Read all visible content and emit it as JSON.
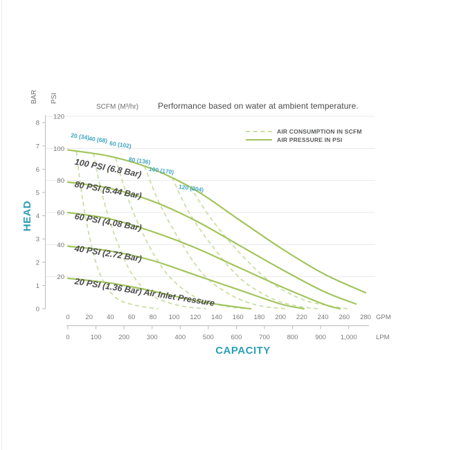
{
  "header": {
    "scfm_axis_label": "SCFM (M³/hr)",
    "title": "Performance based on water at ambient temperature."
  },
  "legend": {
    "items": [
      {
        "label": "AIR CONSUMPTION IN SCFM",
        "style": "dashed"
      },
      {
        "label": "AIR PRESSURE IN PSI",
        "style": "solid"
      }
    ]
  },
  "axes": {
    "head_label": "HEAD",
    "capacity_label": "CAPACITY",
    "bar_label": "BAR",
    "psi_label": "PSI",
    "gpm_unit": "GPM",
    "lpm_unit": "LPM",
    "bar_ticks": [
      0,
      1,
      2,
      3,
      4,
      5,
      6,
      7,
      8
    ],
    "psi_ticks": [
      20,
      40,
      60,
      80,
      100,
      120
    ],
    "gpm_ticks": [
      0,
      20,
      40,
      60,
      80,
      100,
      120,
      140,
      160,
      180,
      200,
      220,
      240,
      260,
      280
    ],
    "lpm_tick_labels": [
      "0",
      "100",
      "200",
      "300",
      "400",
      "500",
      "600",
      "700",
      "800",
      "900",
      "1,000"
    ]
  },
  "chart_data": {
    "type": "line",
    "title": "Performance based on water at ambient temperature.",
    "xlabel": "CAPACITY",
    "ylabel": "HEAD",
    "x_units": [
      "GPM",
      "LPM"
    ],
    "y_units": [
      "BAR",
      "PSI"
    ],
    "x_range_gpm": [
      0,
      280
    ],
    "x_range_lpm": [
      0,
      1060
    ],
    "y_range_psi": [
      0,
      120
    ],
    "y_range_bar": [
      0,
      8
    ],
    "grid": "horizontal, light gray at every 20 PSI",
    "legend_position": "top-right",
    "pressure_curves": [
      {
        "name": "air-pressure-100-psi",
        "label": "100 PSI (6.8 Bar)",
        "label_anchor": [
          6,
          90
        ],
        "label_angle": 11,
        "points": [
          [
            0,
            99
          ],
          [
            40,
            95
          ],
          [
            80,
            87
          ],
          [
            120,
            74
          ],
          [
            160,
            56
          ],
          [
            200,
            38
          ],
          [
            240,
            22
          ],
          [
            280,
            10
          ]
        ]
      },
      {
        "name": "air-pressure-80-psi",
        "label": "80 PSI (5.44 Bar)",
        "label_anchor": [
          6,
          76
        ],
        "label_angle": 10,
        "points": [
          [
            0,
            79
          ],
          [
            40,
            75
          ],
          [
            80,
            67
          ],
          [
            120,
            55
          ],
          [
            160,
            40
          ],
          [
            200,
            25
          ],
          [
            240,
            11
          ],
          [
            271,
            3
          ]
        ]
      },
      {
        "name": "air-pressure-60-psi",
        "label": "60 PSI (4.08 Bar)",
        "label_anchor": [
          6,
          56
        ],
        "label_angle": 10,
        "points": [
          [
            0,
            60
          ],
          [
            40,
            56
          ],
          [
            80,
            48
          ],
          [
            120,
            38
          ],
          [
            160,
            26
          ],
          [
            200,
            14
          ],
          [
            240,
            3
          ],
          [
            256,
            0
          ]
        ]
      },
      {
        "name": "air-pressure-40-psi",
        "label": "40 PSI (2.72 Bar)",
        "label_anchor": [
          6,
          36
        ],
        "label_angle": 9,
        "points": [
          [
            0,
            39
          ],
          [
            40,
            36
          ],
          [
            80,
            30
          ],
          [
            120,
            21
          ],
          [
            160,
            12
          ],
          [
            200,
            3
          ],
          [
            222,
            0
          ]
        ]
      },
      {
        "name": "air-pressure-20-psi",
        "label": "20 PSI (1.36 Bar) Air Inlet Pressure",
        "label_anchor": [
          6,
          15.5
        ],
        "label_angle": 9,
        "points": [
          [
            0,
            19
          ],
          [
            40,
            16
          ],
          [
            80,
            11
          ],
          [
            120,
            5
          ],
          [
            160,
            1
          ],
          [
            172,
            0
          ]
        ]
      }
    ],
    "consumption_curves": [
      {
        "name": "air-consumption-20-scfm",
        "label": "20 (34)",
        "label_anchor": [
          2.6,
          107
        ],
        "points": [
          [
            8,
            98
          ],
          [
            13,
            72
          ],
          [
            20,
            46
          ],
          [
            30,
            22
          ],
          [
            45,
            7
          ],
          [
            65,
            2
          ],
          [
            85,
            0
          ]
        ]
      },
      {
        "name": "air-consumption-40-scfm",
        "label": "40 (68)",
        "label_anchor": [
          19.5,
          105
        ],
        "points": [
          [
            24,
            97
          ],
          [
            32,
            72
          ],
          [
            44,
            46
          ],
          [
            60,
            22
          ],
          [
            80,
            8
          ],
          [
            105,
            2
          ],
          [
            130,
            0
          ]
        ]
      },
      {
        "name": "air-consumption-60-scfm",
        "label": "60 (102)",
        "label_anchor": [
          39,
          102
        ],
        "points": [
          [
            45,
            94
          ],
          [
            56,
            70
          ],
          [
            72,
            45
          ],
          [
            93,
            22
          ],
          [
            118,
            8
          ],
          [
            145,
            2
          ],
          [
            170,
            0
          ]
        ]
      },
      {
        "name": "air-consumption-80-scfm",
        "label": "80 (136)",
        "label_anchor": [
          57,
          92
        ],
        "points": [
          [
            72,
            89
          ],
          [
            86,
            66
          ],
          [
            105,
            43
          ],
          [
            128,
            21
          ],
          [
            155,
            8
          ],
          [
            180,
            2
          ],
          [
            205,
            0
          ]
        ]
      },
      {
        "name": "air-consumption-100-scfm",
        "label": "100 (170)",
        "label_anchor": [
          76,
          86
        ],
        "points": [
          [
            98,
            82
          ],
          [
            114,
            60
          ],
          [
            136,
            39
          ],
          [
            162,
            19
          ],
          [
            190,
            7
          ],
          [
            213,
            2
          ],
          [
            235,
            0
          ]
        ]
      },
      {
        "name": "air-consumption-120-scfm",
        "label": "120 (204)",
        "label_anchor": [
          104,
          75
        ],
        "points": [
          [
            115,
            76
          ],
          [
            135,
            56
          ],
          [
            160,
            36
          ],
          [
            190,
            17
          ],
          [
            220,
            6
          ],
          [
            245,
            2
          ],
          [
            263,
            0
          ]
        ]
      }
    ],
    "colors": {
      "pressure_curve": "#a2c45c",
      "consumption_curve": "#c9dfa3",
      "accent_teal": "#2b9fb7",
      "scfm_annotation": "#3fa6c2",
      "grid": "#e9eaeb",
      "axis_line": "#b9babc",
      "tick_text": "#77787a",
      "curve_label": "#4b4b4d"
    }
  }
}
